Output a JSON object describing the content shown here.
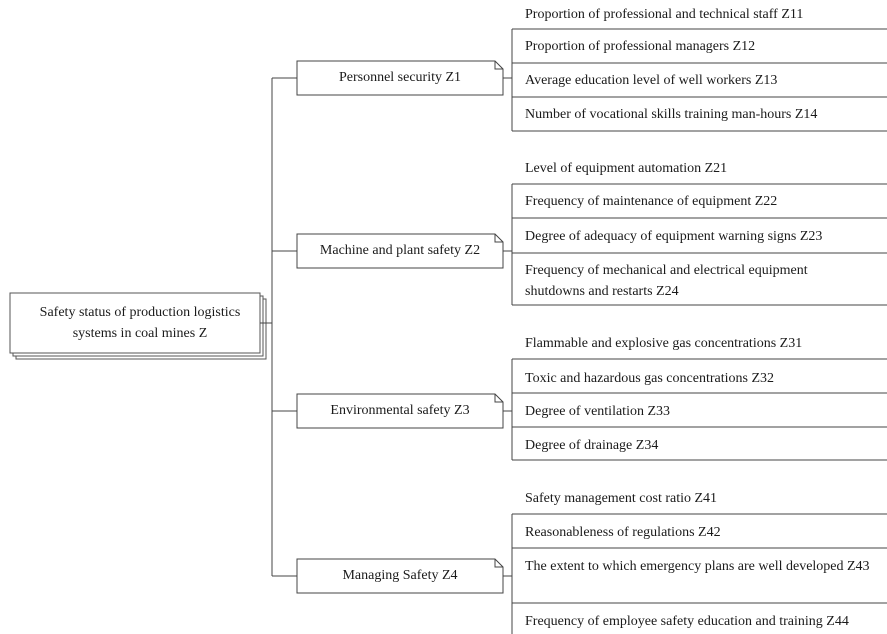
{
  "root": {
    "label": "Safety status of production logistics systems in coal mines Z"
  },
  "groups": [
    {
      "label": "Personnel security Z1",
      "items": [
        "Proportion of professional and technical staff Z11",
        "Proportion of professional managers Z12",
        "Average education level of well workers Z13",
        "Number of vocational skills training man-hours Z14"
      ]
    },
    {
      "label": "Machine and plant safety Z2",
      "items": [
        "Level of equipment automation Z21",
        "Frequency of maintenance of equipment Z22",
        "Degree of adequacy of equipment warning signs Z23",
        "Frequency of mechanical and electrical equipment shutdowns and restarts Z24"
      ]
    },
    {
      "label": "Environmental safety Z3",
      "items": [
        "Flammable and explosive gas concentrations Z31",
        "Toxic and hazardous gas concentrations Z32",
        "Degree of ventilation Z33",
        "Degree of drainage Z34"
      ]
    },
    {
      "label": "Managing Safety Z4",
      "items": [
        "Safety management cost ratio Z41",
        "Reasonableness of regulations Z42",
        "The extent to which emergency plans are well developed Z43",
        "Frequency of employee safety education and training Z44"
      ]
    }
  ]
}
